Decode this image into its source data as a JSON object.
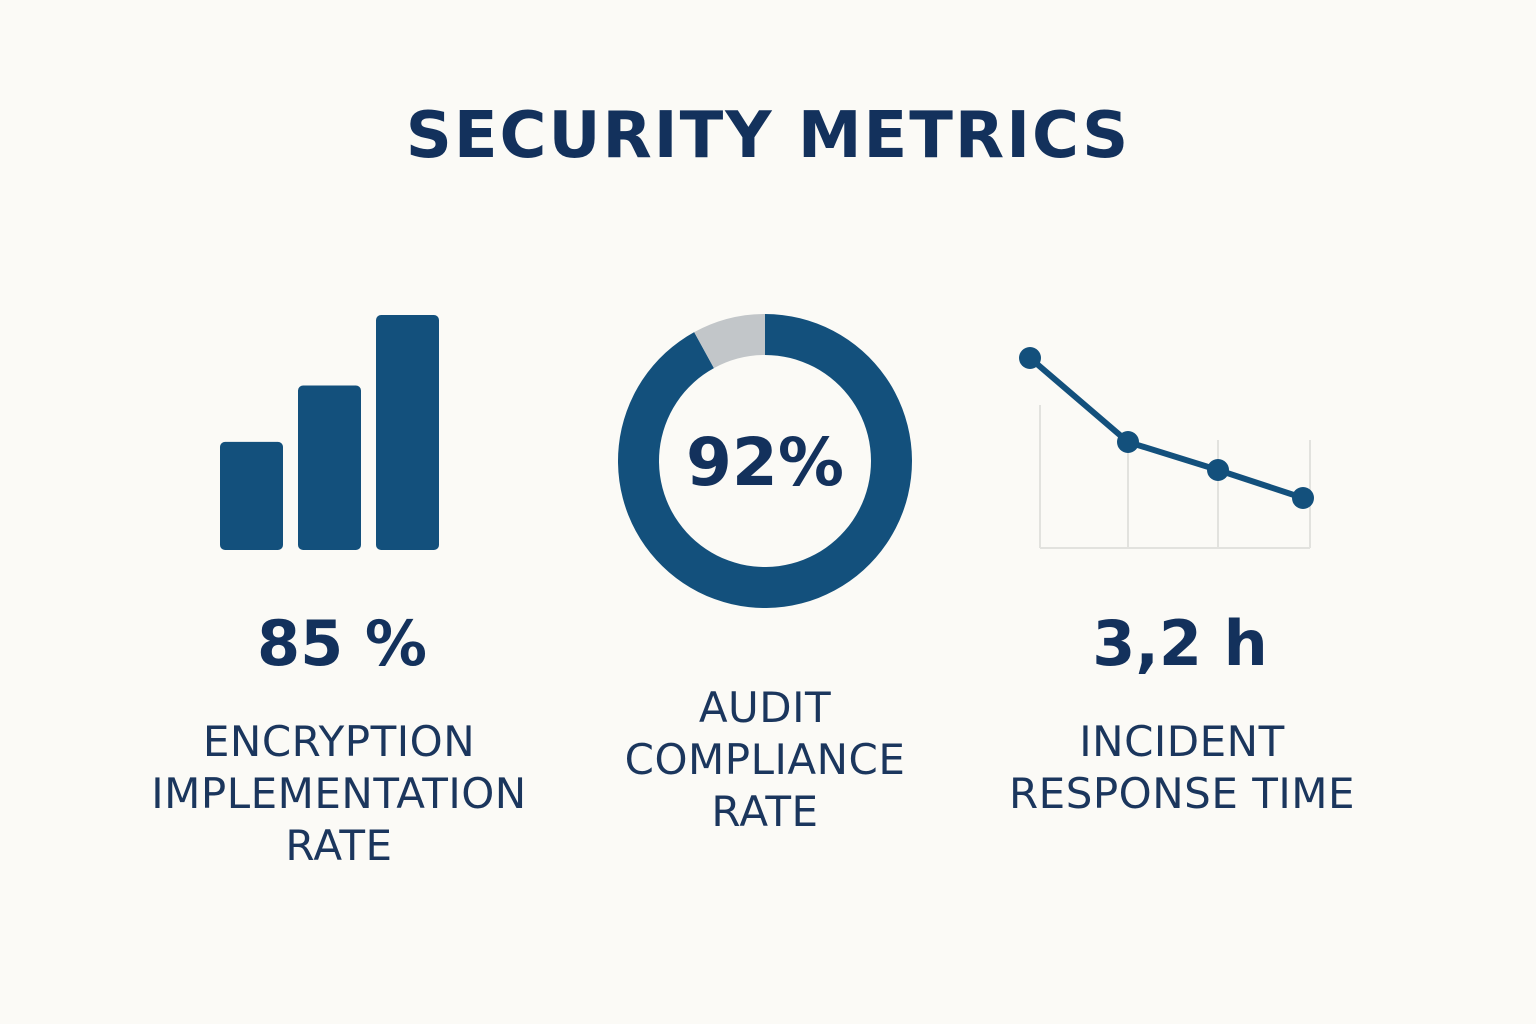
{
  "title": "SECURITY METRICS",
  "colors": {
    "primary": "#13507c",
    "text": "#13315c",
    "remainder": "#c2c6c9",
    "grid": "#e2e2de",
    "background": "#fbfaf6"
  },
  "metrics": {
    "encryption": {
      "value": "85 %",
      "label_lines": [
        "ENCRYPTION",
        "IMPLEMENTATION",
        "RATE"
      ]
    },
    "audit": {
      "value": "92%",
      "label_lines": [
        "AUDIT",
        "COMPLIANCE",
        "RATE"
      ]
    },
    "incident": {
      "value": "3,2 h",
      "label_lines": [
        "INCIDENT",
        "RESPONSE TIME"
      ]
    }
  },
  "chart_data": [
    {
      "type": "bar",
      "categories": [
        "",
        "",
        ""
      ],
      "values": [
        46,
        70,
        100
      ],
      "ylim": [
        0,
        100
      ],
      "grid": false
    },
    {
      "type": "pie",
      "donut": true,
      "slices": [
        {
          "label": "",
          "value": 92,
          "color": "#13507c"
        },
        {
          "label": "",
          "value": 8,
          "color": "#c2c6c9"
        }
      ]
    },
    {
      "type": "line",
      "x": [
        0,
        1,
        2,
        3
      ],
      "values": [
        100,
        52,
        36,
        20
      ],
      "ylim": [
        0,
        100
      ],
      "grid": true
    }
  ]
}
